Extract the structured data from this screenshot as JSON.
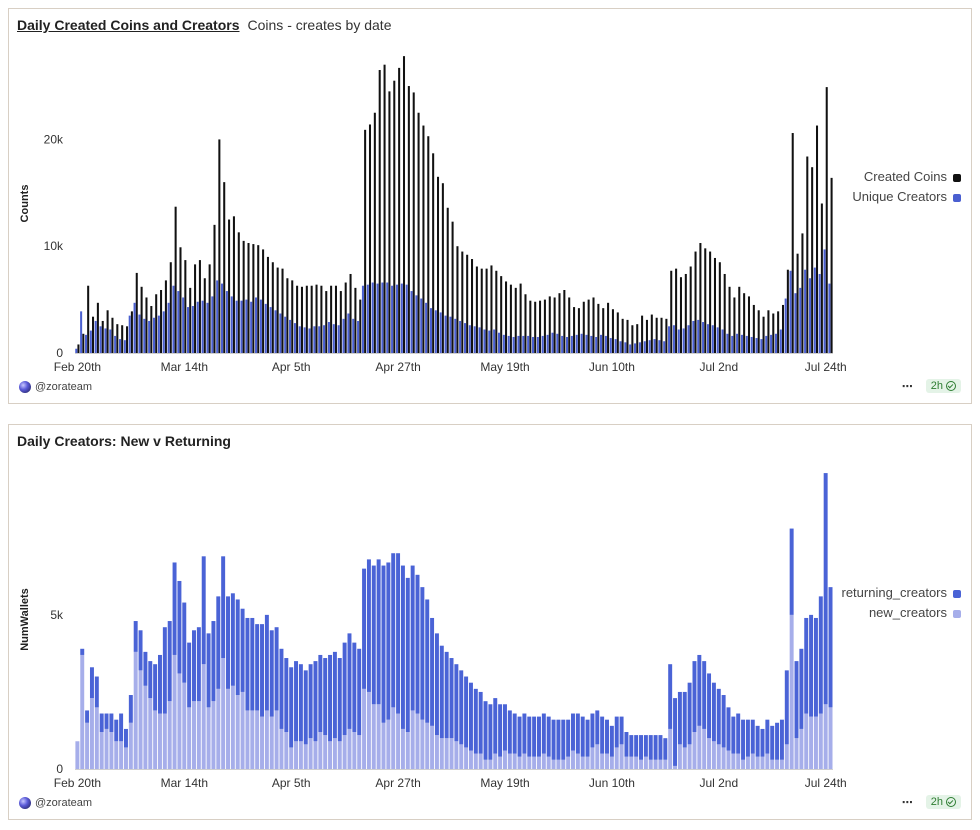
{
  "colors": {
    "created": "#111111",
    "unique": "#4a5fd0",
    "returning": "#4a63d6",
    "new": "#a6aeea"
  },
  "chart1": {
    "title": "Daily Created Coins and Creators",
    "subtitle": "Coins - creates by date",
    "ylabel": "Counts",
    "owner": "@zorateam",
    "refresh": "2h",
    "legend": [
      "Created Coins",
      "Unique Creators"
    ]
  },
  "chart2": {
    "title": "Daily Creators: New v Returning",
    "ylabel": "NumWallets",
    "owner": "@zorateam",
    "refresh": "2h",
    "legend": [
      "returning_creators",
      "new_creators"
    ]
  },
  "chart_data": [
    {
      "type": "bar",
      "title": "Daily Created Coins and Creators",
      "subtitle": "Coins - creates by date",
      "xlabel": "",
      "ylabel": "Counts",
      "ylim": [
        0,
        28000
      ],
      "yticks": [
        0,
        10000,
        20000
      ],
      "ytick_labels": [
        "0",
        "10k",
        "20k"
      ],
      "xtick_labels": [
        "Feb 20th",
        "Mar 14th",
        "Apr 5th",
        "Apr 27th",
        "May 19th",
        "Jun 10th",
        "Jul 2nd",
        "Jul 24th"
      ],
      "xtick_index": [
        0,
        22,
        44,
        66,
        88,
        110,
        132,
        154
      ],
      "legend_position": "right",
      "series": [
        {
          "name": "Created Coins",
          "values": [
            800,
            1800,
            6300,
            3400,
            4700,
            3000,
            4000,
            3300,
            2700,
            2600,
            2500,
            3900,
            7500,
            6200,
            5200,
            4400,
            5500,
            5900,
            6800,
            8500,
            13700,
            9900,
            8700,
            6100,
            8300,
            8700,
            7000,
            8300,
            12000,
            20000,
            16000,
            12500,
            12800,
            11300,
            10500,
            10300,
            10200,
            10100,
            9700,
            9000,
            8500,
            8000,
            7900,
            7000,
            6800,
            6300,
            6200,
            6300,
            6300,
            6400,
            6300,
            5800,
            6300,
            6300,
            5800,
            6600,
            7400,
            6100,
            5000,
            20900,
            21400,
            22500,
            26500,
            27000,
            24500,
            25500,
            26700,
            27800,
            25000,
            24400,
            22500,
            21300,
            20300,
            18700,
            16500,
            15900,
            13600,
            12300,
            10000,
            9500,
            9200,
            8800,
            8100,
            7900,
            7900,
            8200,
            7700,
            7200,
            6700,
            6400,
            6100,
            6500,
            5500,
            4900,
            4800,
            4900,
            5000,
            5300,
            5200,
            5600,
            5900,
            5200,
            4300,
            4200,
            4800,
            5000,
            5200,
            4600,
            4200,
            4700,
            4100,
            3800,
            3200,
            3100,
            2600,
            2700,
            3500,
            3100,
            3600,
            3300,
            3300,
            3200,
            7700,
            7900,
            7100,
            7400,
            8100,
            9500,
            10300,
            9800,
            9500,
            8900,
            8500,
            7400,
            6200,
            5200,
            6200,
            5600,
            5300,
            4500,
            4000,
            3400,
            4000,
            3700,
            3900,
            4500,
            7800,
            20600,
            9300,
            11200,
            18400,
            17400,
            21300,
            14000,
            24900,
            16400
          ]
        },
        {
          "name": "Unique Creators",
          "values": [
            400,
            3900,
            1700,
            2100,
            3000,
            2500,
            2300,
            2200,
            1600,
            1300,
            1200,
            3500,
            4700,
            3600,
            3200,
            3000,
            3300,
            3500,
            3900,
            4700,
            6300,
            5800,
            5200,
            4300,
            4400,
            4800,
            4900,
            4700,
            5300,
            6800,
            6500,
            5800,
            5300,
            4900,
            4900,
            5000,
            4800,
            5200,
            5000,
            4600,
            4300,
            4000,
            3700,
            3400,
            3100,
            2800,
            2500,
            2400,
            2300,
            2500,
            2500,
            2600,
            2900,
            2700,
            2600,
            3200,
            3700,
            3200,
            3000,
            6300,
            6400,
            6600,
            6500,
            6600,
            6600,
            6300,
            6400,
            6500,
            6400,
            5800,
            5400,
            5100,
            4700,
            4200,
            4000,
            3800,
            3500,
            3400,
            3200,
            3000,
            2800,
            2600,
            2500,
            2400,
            2200,
            2100,
            2200,
            1900,
            1700,
            1600,
            1500,
            1600,
            1600,
            1600,
            1500,
            1500,
            1600,
            1700,
            1900,
            1800,
            1600,
            1500,
            1600,
            1700,
            1800,
            1700,
            1600,
            1500,
            1700,
            1600,
            1400,
            1300,
            1100,
            1000,
            800,
            900,
            1000,
            1100,
            1200,
            1300,
            1200,
            1100,
            2500,
            2600,
            2200,
            2300,
            2600,
            3000,
            3100,
            2900,
            2700,
            2600,
            2400,
            2200,
            1800,
            1600,
            1800,
            1700,
            1600,
            1500,
            1400,
            1300,
            1600,
            1700,
            1800,
            2200,
            5100,
            7700,
            5600,
            6100,
            7800,
            7000,
            8000,
            7400,
            9700,
            6500
          ]
        }
      ]
    },
    {
      "type": "bar",
      "stacked": true,
      "title": "Daily Creators: New v Returning",
      "xlabel": "",
      "ylabel": "NumWallets",
      "ylim": [
        0,
        9700
      ],
      "yticks": [
        0,
        5000
      ],
      "ytick_labels": [
        "0",
        "5k"
      ],
      "xtick_labels": [
        "Feb 20th",
        "Mar 14th",
        "Apr 5th",
        "Apr 27th",
        "May 19th",
        "Jun 10th",
        "Jul 2nd",
        "Jul 24th"
      ],
      "xtick_index": [
        0,
        22,
        44,
        66,
        88,
        110,
        132,
        154
      ],
      "legend_position": "right",
      "series": [
        {
          "name": "returning_creators",
          "values": [
            0,
            200,
            400,
            1000,
            1000,
            600,
            500,
            600,
            700,
            900,
            600,
            900,
            1000,
            1300,
            1100,
            1200,
            1500,
            1900,
            2800,
            2600,
            3000,
            3000,
            2600,
            2100,
            2300,
            2400,
            3500,
            2400,
            2600,
            3000,
            3300,
            3000,
            3000,
            3100,
            2700,
            3000,
            3000,
            2800,
            3000,
            3100,
            2800,
            2700,
            2600,
            2400,
            2600,
            2600,
            2500,
            2400,
            2400,
            2600,
            2500,
            2500,
            2800,
            2800,
            2700,
            3000,
            3100,
            2900,
            2800,
            3900,
            4300,
            4500,
            4700,
            5100,
            5100,
            5000,
            5200,
            5300,
            5000,
            4700,
            4500,
            4300,
            4000,
            3500,
            3300,
            3000,
            2800,
            2600,
            2500,
            2400,
            2300,
            2200,
            2100,
            2000,
            1900,
            1800,
            1800,
            1700,
            1500,
            1400,
            1300,
            1300,
            1300,
            1300,
            1300,
            1300,
            1300,
            1300,
            1300,
            1300,
            1300,
            1200,
            1200,
            1300,
            1300,
            1200,
            1100,
            1100,
            1200,
            1100,
            1000,
            1000,
            900,
            800,
            700,
            700,
            800,
            700,
            800,
            800,
            800,
            700,
            2100,
            2200,
            1700,
            1800,
            2000,
            2300,
            2300,
            2200,
            2100,
            1900,
            1800,
            1700,
            1400,
            1200,
            1300,
            1300,
            1200,
            1100,
            1000,
            900,
            1100,
            1100,
            1200,
            1300,
            2400,
            2800,
            2500,
            2600,
            3100,
            3300,
            3200,
            3800,
            7500,
            3900
          ]
        },
        {
          "name": "new_creators",
          "values": [
            900,
            3700,
            1500,
            2300,
            2000,
            1200,
            1300,
            1200,
            900,
            900,
            700,
            1500,
            3800,
            3200,
            2700,
            2300,
            1900,
            1800,
            1800,
            2200,
            3700,
            3100,
            2800,
            2000,
            2200,
            2200,
            3400,
            2000,
            2200,
            2600,
            3600,
            2600,
            2700,
            2400,
            2500,
            1900,
            1900,
            1900,
            1700,
            1900,
            1700,
            1900,
            1300,
            1200,
            700,
            900,
            900,
            800,
            1000,
            900,
            1200,
            1100,
            900,
            1000,
            900,
            1100,
            1300,
            1200,
            1100,
            2600,
            2500,
            2100,
            2100,
            1500,
            1600,
            2000,
            1800,
            1300,
            1200,
            1900,
            1800,
            1600,
            1500,
            1400,
            1100,
            1000,
            1000,
            1000,
            900,
            800,
            700,
            600,
            500,
            500,
            300,
            300,
            500,
            400,
            600,
            500,
            500,
            400,
            500,
            400,
            400,
            400,
            500,
            400,
            300,
            300,
            300,
            400,
            600,
            500,
            400,
            400,
            700,
            800,
            500,
            500,
            400,
            700,
            800,
            400,
            400,
            400,
            300,
            400,
            300,
            300,
            300,
            300,
            1300,
            100,
            800,
            700,
            800,
            1200,
            1400,
            1300,
            1000,
            900,
            800,
            700,
            600,
            500,
            500,
            300,
            400,
            500,
            400,
            400,
            500,
            300,
            300,
            300,
            800,
            5000,
            1000,
            1300,
            1800,
            1700,
            1700,
            1800,
            2100,
            2000
          ]
        }
      ]
    }
  ]
}
